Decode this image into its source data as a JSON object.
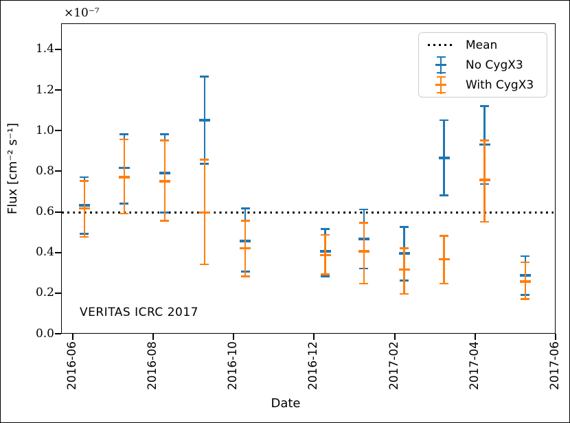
{
  "chart_data": {
    "type": "errorbar",
    "title": "",
    "xlabel": "Date",
    "ylabel": "Flux [cm⁻² s⁻¹]",
    "y_offset_text": "×10⁻⁷",
    "annotation": "VERITAS ICRC 2017",
    "units": "1e-7 cm^-2 s^-1",
    "grid": false,
    "legend_position": "upper right",
    "xlim_months_from_2016_06": [
      -0.29,
      12.0
    ],
    "ylim": [
      0.0,
      1.5285
    ],
    "x_ticks": [
      {
        "label": "2016-06",
        "month": 0
      },
      {
        "label": "2016-08",
        "month": 2
      },
      {
        "label": "2016-10",
        "month": 4
      },
      {
        "label": "2016-12",
        "month": 6
      },
      {
        "label": "2017-02",
        "month": 8
      },
      {
        "label": "2017-04",
        "month": 10
      },
      {
        "label": "2017-06",
        "month": 12
      }
    ],
    "y_ticks": [
      {
        "label": "0.0",
        "value": 0.0
      },
      {
        "label": "0.2",
        "value": 0.2
      },
      {
        "label": "0.4",
        "value": 0.4
      },
      {
        "label": "0.6",
        "value": 0.6
      },
      {
        "label": "0.8",
        "value": 0.8
      },
      {
        "label": "1.0",
        "value": 1.0
      },
      {
        "label": "1.2",
        "value": 1.2
      },
      {
        "label": "1.4",
        "value": 1.4
      }
    ],
    "mean": {
      "label": "Mean",
      "value": 0.6,
      "style": "dotted",
      "color": "#000000"
    },
    "series": [
      {
        "key": "blue",
        "name": "No CygX3",
        "color": "#1f77b4"
      },
      {
        "key": "orange",
        "name": "With CygX3",
        "color": "#ff7f0e"
      }
    ],
    "legend": {
      "items": [
        {
          "label": "Mean",
          "glyph": "dotted",
          "color": "#000000"
        },
        {
          "label": "No CygX3",
          "glyph": "errorbar",
          "color": "#1f77b4"
        },
        {
          "label": "With CygX3",
          "glyph": "errorbar",
          "color": "#ff7f0e"
        }
      ]
    },
    "points": [
      {
        "month": 0.27,
        "blue": {
          "lo": 0.495,
          "mid": 0.635,
          "hi": 0.775
        },
        "orange": {
          "lo": 0.48,
          "mid": 0.62,
          "hi": 0.755
        }
      },
      {
        "month": 1.26,
        "blue": {
          "lo": 0.645,
          "mid": 0.82,
          "hi": 0.985
        },
        "orange": {
          "lo": 0.595,
          "mid": 0.775,
          "hi": 0.96
        }
      },
      {
        "month": 2.27,
        "blue": {
          "lo": 0.6,
          "mid": 0.795,
          "hi": 0.985
        },
        "orange": {
          "lo": 0.56,
          "mid": 0.755,
          "hi": 0.955
        }
      },
      {
        "month": 3.26,
        "blue": {
          "lo": 0.84,
          "mid": 1.055,
          "hi": 1.27
        },
        "orange": {
          "lo": 0.345,
          "mid": 0.6,
          "hi": 0.86
        }
      },
      {
        "month": 4.27,
        "blue": {
          "lo": 0.31,
          "mid": 0.46,
          "hi": 0.62
        },
        "orange": {
          "lo": 0.285,
          "mid": 0.425,
          "hi": 0.56
        }
      },
      {
        "month": 6.26,
        "blue": {
          "lo": 0.285,
          "mid": 0.41,
          "hi": 0.52
        },
        "orange": {
          "lo": 0.295,
          "mid": 0.39,
          "hi": 0.49
        }
      },
      {
        "month": 7.22,
        "blue": {
          "lo": 0.325,
          "mid": 0.47,
          "hi": 0.615
        },
        "orange": {
          "lo": 0.25,
          "mid": 0.41,
          "hi": 0.55
        }
      },
      {
        "month": 8.22,
        "blue": {
          "lo": 0.265,
          "mid": 0.4,
          "hi": 0.53
        },
        "orange": {
          "lo": 0.2,
          "mid": 0.32,
          "hi": 0.425
        }
      },
      {
        "month": 9.21,
        "blue": {
          "lo": 0.685,
          "mid": 0.87,
          "hi": 1.055
        },
        "orange": {
          "lo": 0.25,
          "mid": 0.37,
          "hi": 0.485
        }
      },
      {
        "month": 10.22,
        "blue": {
          "lo": 0.74,
          "mid": 0.935,
          "hi": 1.125
        },
        "orange": {
          "lo": 0.555,
          "mid": 0.76,
          "hi": 0.955
        }
      },
      {
        "month": 11.23,
        "blue": {
          "lo": 0.195,
          "mid": 0.29,
          "hi": 0.385
        },
        "orange": {
          "lo": 0.175,
          "mid": 0.26,
          "hi": 0.355
        }
      }
    ]
  }
}
